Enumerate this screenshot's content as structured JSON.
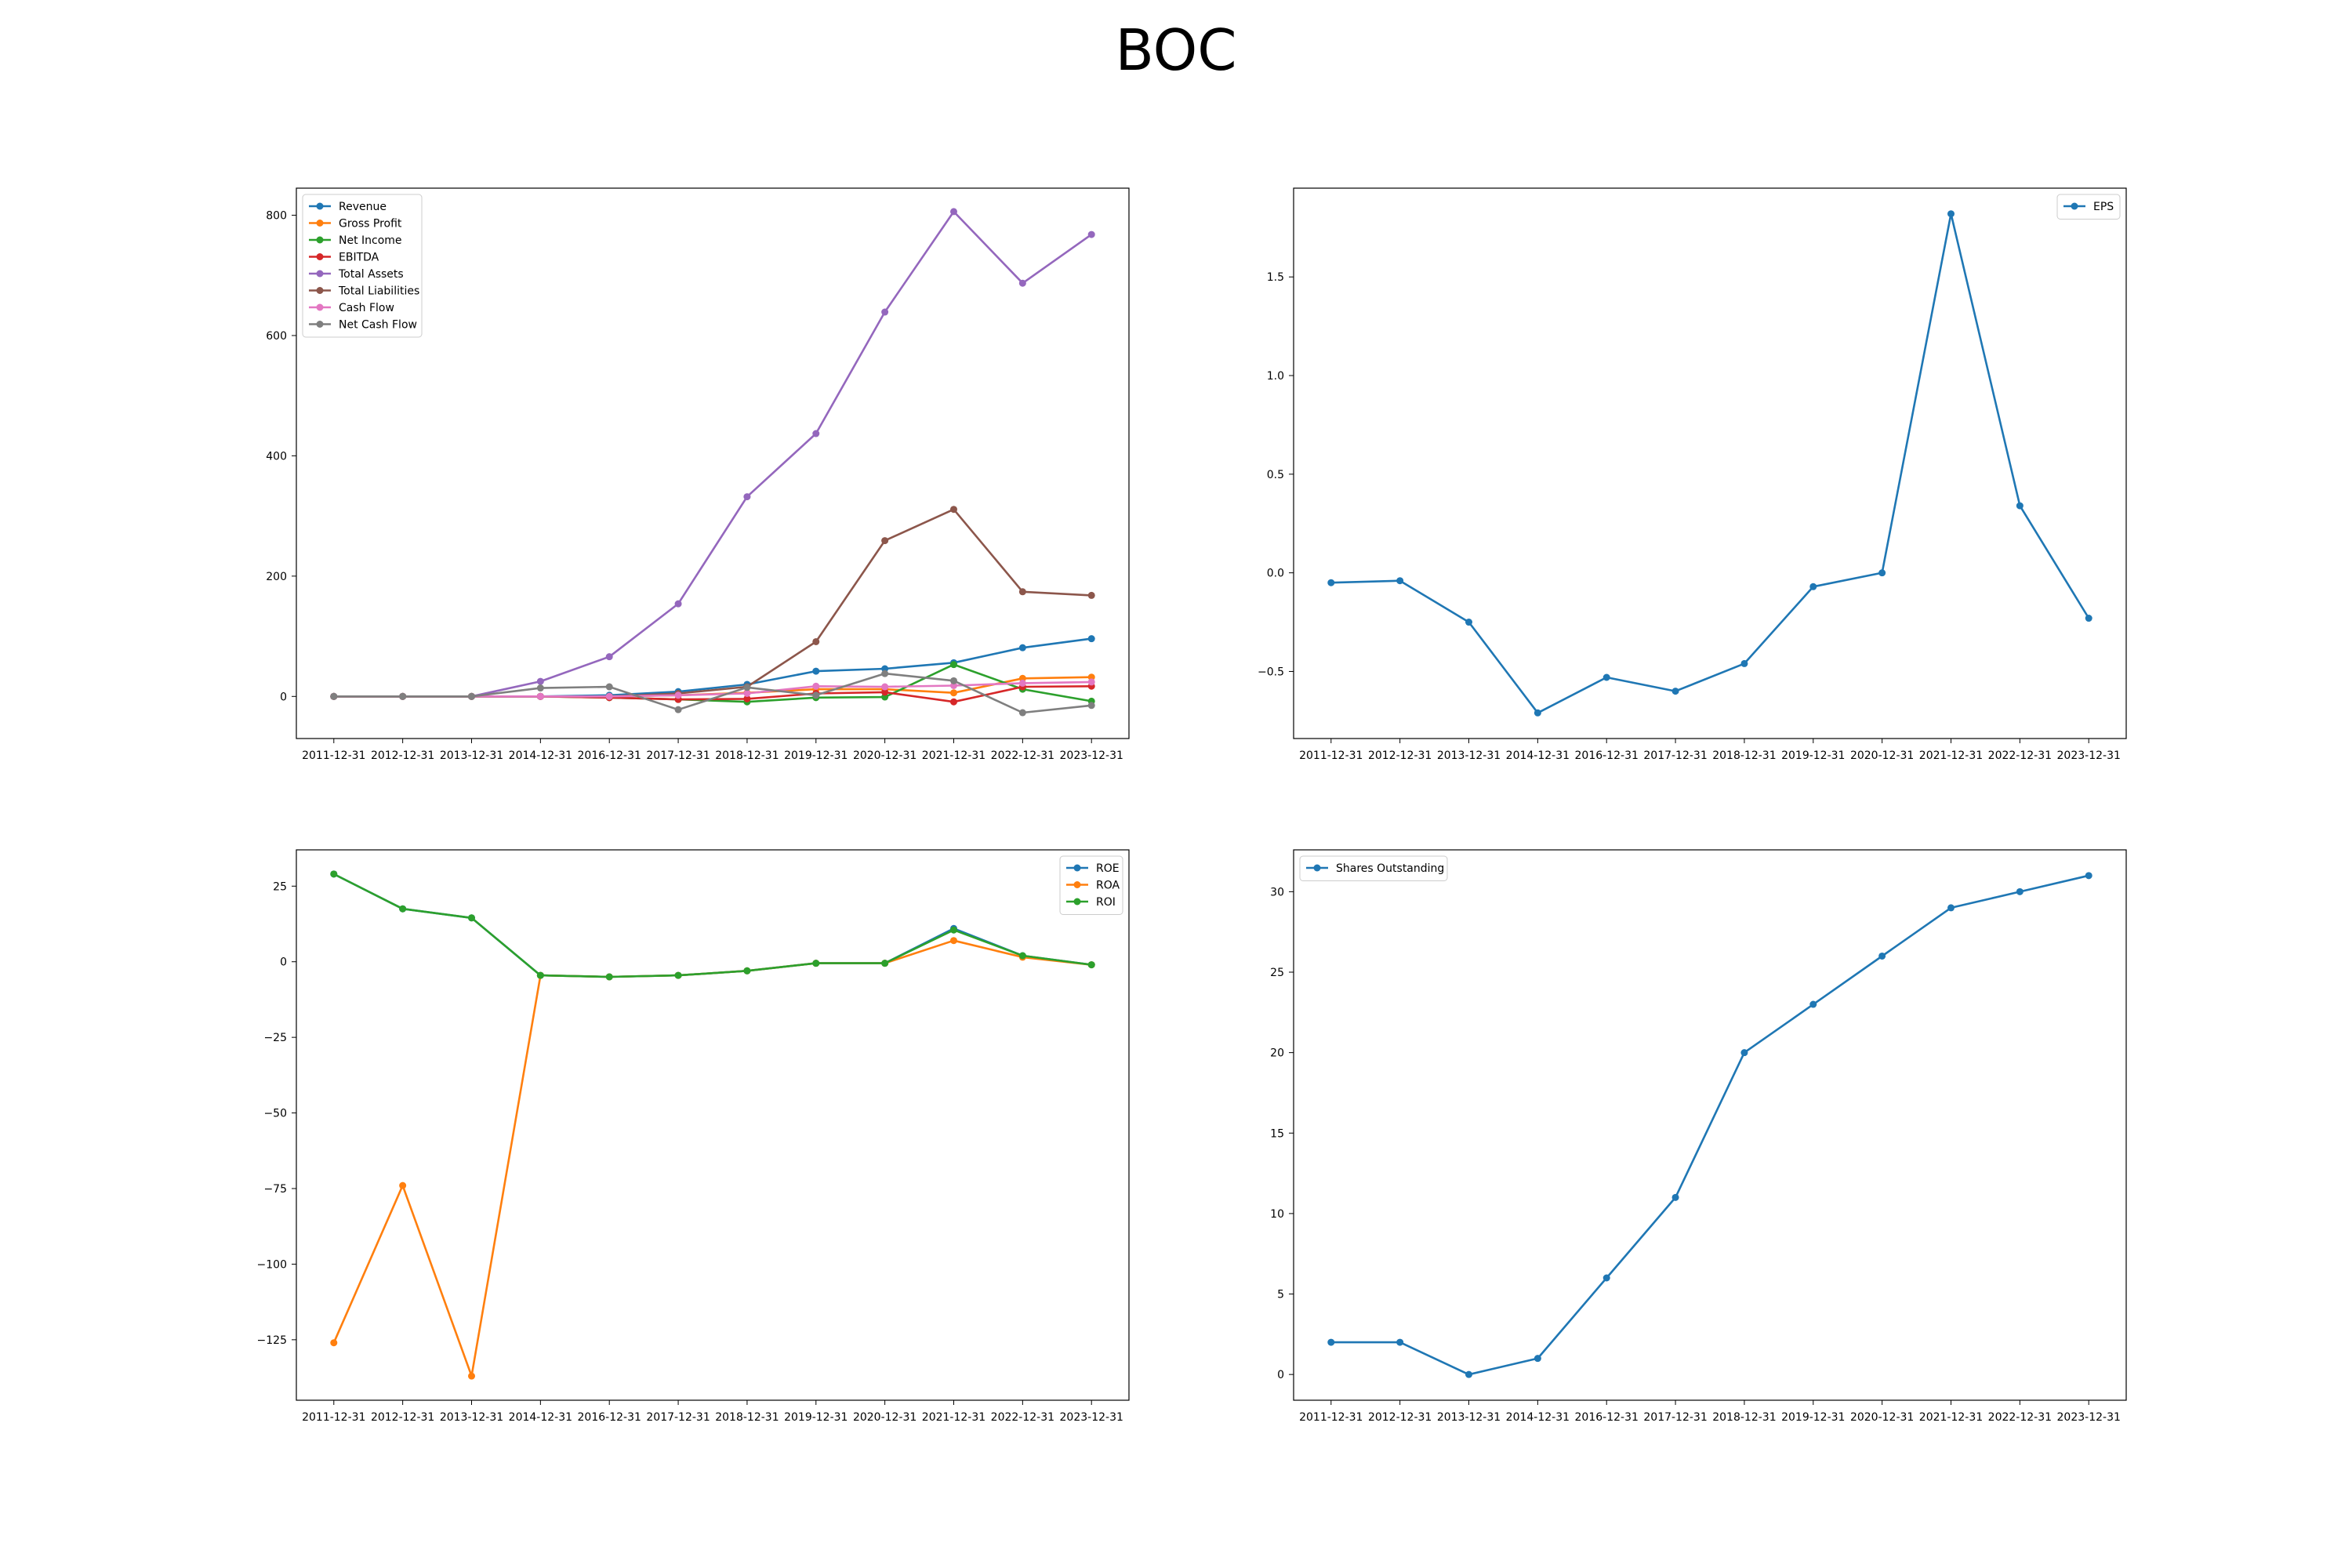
{
  "figure": {
    "title": "BOC"
  },
  "chart_data": [
    {
      "type": "line",
      "title": "",
      "xlabel": "",
      "ylabel": "",
      "x": [
        "2011-12-31",
        "2012-12-31",
        "2013-12-31",
        "2014-12-31",
        "2016-12-31",
        "2017-12-31",
        "2018-12-31",
        "2019-12-31",
        "2020-12-31",
        "2021-12-31",
        "2022-12-31",
        "2023-12-31"
      ],
      "ylim": [
        -70,
        845
      ],
      "yticks": [
        0,
        200,
        400,
        600,
        800
      ],
      "ytick_labels": [
        "0",
        "200",
        "400",
        "600",
        "800"
      ],
      "legend_position": "upper left",
      "grid": false,
      "series": [
        {
          "name": "Revenue",
          "color": "#1f77b4",
          "values": [
            0,
            0,
            0,
            0,
            2,
            8,
            20,
            42,
            46,
            56,
            81,
            96
          ]
        },
        {
          "name": "Gross Profit",
          "color": "#ff7f0e",
          "values": [
            0,
            0,
            0,
            0,
            0,
            2,
            6,
            12,
            12,
            6,
            30,
            32
          ]
        },
        {
          "name": "Net Income",
          "color": "#2ca02c",
          "values": [
            0,
            0,
            0,
            0,
            -2,
            -5,
            -9,
            -2,
            -1,
            53,
            12,
            -8
          ]
        },
        {
          "name": "EBITDA",
          "color": "#d62728",
          "values": [
            0,
            0,
            0,
            0,
            -2,
            -5,
            -4,
            5,
            7,
            -9,
            16,
            17
          ]
        },
        {
          "name": "Total Assets",
          "color": "#9467bd",
          "values": [
            0,
            0,
            0,
            25,
            66,
            154,
            332,
            437,
            639,
            806,
            687,
            768
          ]
        },
        {
          "name": "Total Liabilities",
          "color": "#8c564b",
          "values": [
            0,
            0,
            0,
            0,
            0,
            5,
            16,
            91,
            259,
            311,
            174,
            168
          ]
        },
        {
          "name": "Cash Flow",
          "color": "#e377c2",
          "values": [
            0,
            0,
            0,
            0,
            0,
            2,
            5,
            17,
            16,
            18,
            22,
            24
          ]
        },
        {
          "name": "Net Cash Flow",
          "color": "#7f7f7f",
          "values": [
            0,
            0,
            0,
            14,
            16,
            -22,
            15,
            2,
            38,
            26,
            -27,
            -15
          ]
        }
      ]
    },
    {
      "type": "line",
      "title": "",
      "xlabel": "",
      "ylabel": "",
      "x": [
        "2011-12-31",
        "2012-12-31",
        "2013-12-31",
        "2014-12-31",
        "2016-12-31",
        "2017-12-31",
        "2018-12-31",
        "2019-12-31",
        "2020-12-31",
        "2021-12-31",
        "2022-12-31",
        "2023-12-31"
      ],
      "ylim": [
        -0.84,
        1.95
      ],
      "yticks": [
        -0.5,
        0.0,
        0.5,
        1.0,
        1.5
      ],
      "ytick_labels": [
        "−0.5",
        "0.0",
        "0.5",
        "1.0",
        "1.5"
      ],
      "legend_position": "upper right",
      "grid": false,
      "series": [
        {
          "name": "EPS",
          "color": "#1f77b4",
          "values": [
            -0.05,
            -0.04,
            -0.25,
            -0.71,
            -0.53,
            -0.6,
            -0.46,
            -0.07,
            0.0,
            1.82,
            0.34,
            -0.23
          ]
        }
      ]
    },
    {
      "type": "line",
      "title": "",
      "xlabel": "",
      "ylabel": "",
      "x": [
        "2011-12-31",
        "2012-12-31",
        "2013-12-31",
        "2014-12-31",
        "2016-12-31",
        "2017-12-31",
        "2018-12-31",
        "2019-12-31",
        "2020-12-31",
        "2021-12-31",
        "2022-12-31",
        "2023-12-31"
      ],
      "ylim": [
        -145,
        37
      ],
      "yticks": [
        -125,
        -100,
        -75,
        -50,
        -25,
        0,
        25
      ],
      "ytick_labels": [
        "−125",
        "−100",
        "−75",
        "−50",
        "−25",
        "0",
        "25"
      ],
      "legend_position": "upper right",
      "grid": false,
      "series": [
        {
          "name": "ROE",
          "color": "#1f77b4",
          "values": [
            29,
            17.5,
            14.5,
            -4.5,
            -5,
            -4.5,
            -3,
            -0.5,
            -0.5,
            11,
            2,
            -1
          ]
        },
        {
          "name": "ROA",
          "color": "#ff7f0e",
          "values": [
            -126,
            -74,
            -137,
            -4.5,
            -5,
            -4.5,
            -3,
            -0.5,
            -0.5,
            7,
            1.5,
            -1
          ]
        },
        {
          "name": "ROI",
          "color": "#2ca02c",
          "values": [
            29,
            17.5,
            14.5,
            -4.5,
            -5,
            -4.5,
            -3,
            -0.5,
            -0.5,
            10.5,
            2,
            -1
          ]
        }
      ]
    },
    {
      "type": "line",
      "title": "",
      "xlabel": "",
      "ylabel": "",
      "x": [
        "2011-12-31",
        "2012-12-31",
        "2013-12-31",
        "2014-12-31",
        "2016-12-31",
        "2017-12-31",
        "2018-12-31",
        "2019-12-31",
        "2020-12-31",
        "2021-12-31",
        "2022-12-31",
        "2023-12-31"
      ],
      "ylim": [
        -1.6,
        32.6
      ],
      "yticks": [
        0,
        5,
        10,
        15,
        20,
        25,
        30
      ],
      "ytick_labels": [
        "0",
        "5",
        "10",
        "15",
        "20",
        "25",
        "30"
      ],
      "legend_position": "upper left",
      "grid": false,
      "series": [
        {
          "name": "Shares Outstanding",
          "color": "#1f77b4",
          "values": [
            2,
            2,
            0,
            1,
            6,
            11,
            20,
            23,
            26,
            29,
            30,
            31
          ]
        }
      ]
    }
  ]
}
